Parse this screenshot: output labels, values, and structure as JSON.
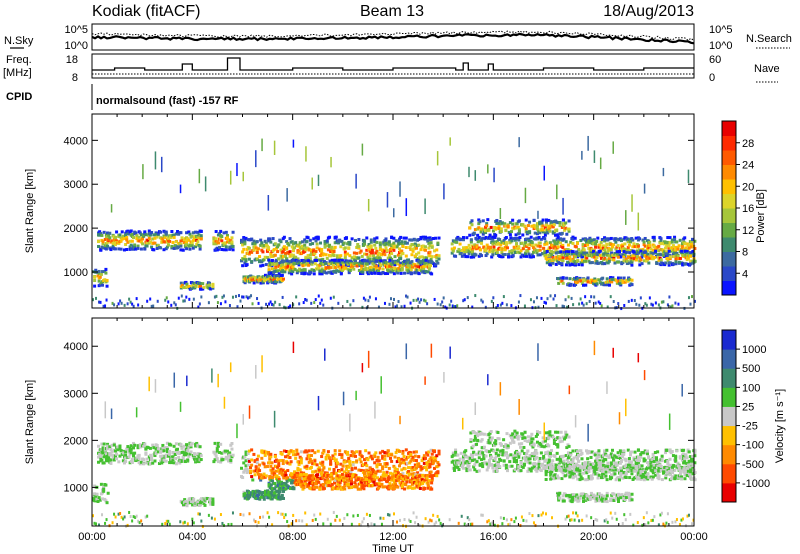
{
  "header": {
    "station": "Kodiak (fitACF)",
    "beam": "Beam 13",
    "date": "18/Aug/2013"
  },
  "summary_panel": {
    "nsky_label": "N.Sky",
    "nsearch_label": "N.Search",
    "noise_ticks": [
      "10^5",
      "10^0"
    ],
    "freq_label_line1": "Freq.",
    "freq_label_line2": "[MHz]",
    "freq_ticks": [
      "18",
      "8"
    ],
    "nave_label": "Nave",
    "nave_ticks": [
      "60",
      "0"
    ],
    "cpid_label": "CPID",
    "cpid_text": "normalsound (fast) -157 RF"
  },
  "chart_data": [
    {
      "type": "heatmap",
      "name": "power",
      "title": "",
      "xlabel": "",
      "ylabel": "Slant Range [km]",
      "x_ticks": [
        "00:00",
        "04:00",
        "08:00",
        "12:00",
        "16:00",
        "20:00",
        "00:00"
      ],
      "x_range_hours": [
        0,
        24
      ],
      "y_ticks": [
        1000,
        2000,
        3000,
        4000
      ],
      "y_range_km": [
        180,
        4600
      ],
      "colorbar": {
        "label": "Power [dB]",
        "ticks": [
          "4",
          "8",
          "12",
          "16",
          "20",
          "24",
          "28"
        ],
        "range": [
          0,
          30
        ],
        "colors": [
          "#0a14ff",
          "#2a48c8",
          "#3c6aa0",
          "#3e8a6e",
          "#66aa44",
          "#a6c63a",
          "#dcd42a",
          "#ffc000",
          "#ff8a00",
          "#ff5a00",
          "#ff2a00",
          "#e80000"
        ]
      }
    },
    {
      "type": "heatmap",
      "name": "velocity",
      "title": "",
      "xlabel": "Time UT",
      "ylabel": "Slant Range [km]",
      "x_ticks": [
        "00:00",
        "04:00",
        "08:00",
        "12:00",
        "16:00",
        "20:00",
        "00:00"
      ],
      "x_range_hours": [
        0,
        24
      ],
      "y_ticks": [
        1000,
        2000,
        3000,
        4000
      ],
      "y_range_km": [
        180,
        4600
      ],
      "colorbar": {
        "label": "Velocity [m s⁻¹]",
        "ticks": [
          "1000",
          "500",
          "100",
          "25",
          "-25",
          "-100",
          "-500",
          "-1000"
        ],
        "colors": [
          "#1a2ad0",
          "#3a66a8",
          "#3e8a6e",
          "#44c030",
          "#c8c8c8",
          "#ffc000",
          "#ff8a00",
          "#ff4a00",
          "#e80000"
        ]
      }
    }
  ]
}
